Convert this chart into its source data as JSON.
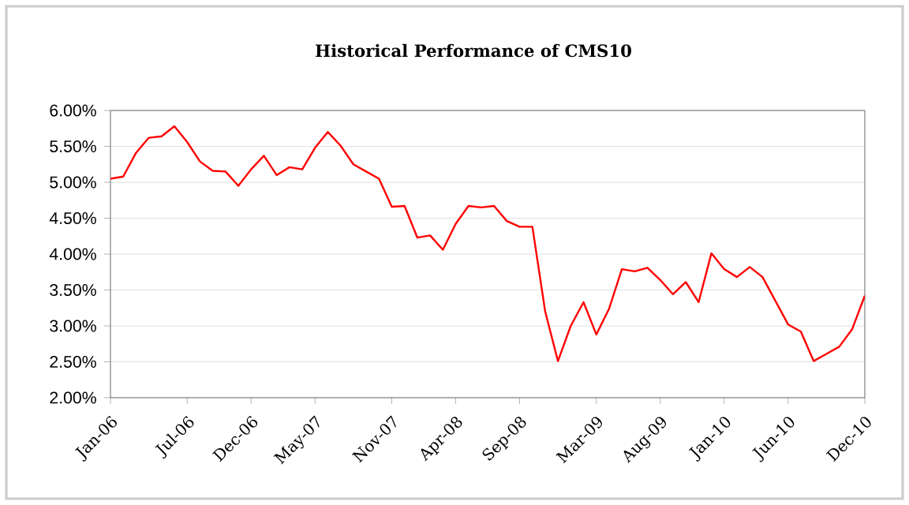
{
  "chart_data": {
    "type": "line",
    "title": "Historical Performance of CMS10",
    "x": [
      "2006-01",
      "2006-02",
      "2006-03",
      "2006-04",
      "2006-05",
      "2006-06",
      "2006-07",
      "2006-08",
      "2006-09",
      "2006-10",
      "2006-11",
      "2006-12",
      "2007-01",
      "2007-02",
      "2007-03",
      "2007-04",
      "2007-05",
      "2007-06",
      "2007-07",
      "2007-08",
      "2007-09",
      "2007-10",
      "2007-11",
      "2007-12",
      "2008-01",
      "2008-02",
      "2008-03",
      "2008-04",
      "2008-05",
      "2008-06",
      "2008-07",
      "2008-08",
      "2008-09",
      "2008-10",
      "2008-11",
      "2008-12",
      "2009-01",
      "2009-02",
      "2009-03",
      "2009-04",
      "2009-05",
      "2009-06",
      "2009-07",
      "2009-08",
      "2009-09",
      "2009-10",
      "2009-11",
      "2009-12",
      "2010-01",
      "2010-02",
      "2010-03",
      "2010-04",
      "2010-05",
      "2010-06",
      "2010-07",
      "2010-08",
      "2010-09",
      "2010-10",
      "2010-11",
      "2010-12"
    ],
    "series": [
      {
        "color": "#ff0000",
        "values": [
          5.05,
          5.08,
          5.41,
          5.62,
          5.64,
          5.78,
          5.56,
          5.29,
          5.16,
          5.15,
          4.95,
          5.18,
          5.37,
          5.1,
          5.21,
          5.18,
          5.48,
          5.7,
          5.51,
          5.25,
          5.15,
          5.05,
          4.66,
          4.67,
          4.23,
          4.26,
          4.06,
          4.42,
          4.67,
          4.65,
          4.67,
          4.46,
          4.38,
          4.38,
          3.2,
          2.51,
          3.0,
          3.33,
          2.88,
          3.24,
          3.79,
          3.76,
          3.81,
          3.64,
          3.44,
          3.61,
          3.33,
          4.01,
          3.79,
          3.68,
          3.82,
          3.68,
          3.35,
          3.02,
          2.92,
          2.51,
          2.61,
          2.71,
          2.95,
          3.42
        ]
      }
    ],
    "xlim": [
      "2006-01",
      "2010-12"
    ],
    "xticks": [
      {
        "value": "2006-01",
        "label": "Jan-06"
      },
      {
        "value": "2006-07",
        "label": "Jul-06"
      },
      {
        "value": "2006-12",
        "label": "Dec-06"
      },
      {
        "value": "2007-05",
        "label": "May-07"
      },
      {
        "value": "2007-11",
        "label": "Nov-07"
      },
      {
        "value": "2008-04",
        "label": "Apr-08"
      },
      {
        "value": "2008-09",
        "label": "Sep-08"
      },
      {
        "value": "2009-03",
        "label": "Mar-09"
      },
      {
        "value": "2009-08",
        "label": "Aug-09"
      },
      {
        "value": "2010-01",
        "label": "Jan-10"
      },
      {
        "value": "2010-06",
        "label": "Jun-10"
      },
      {
        "value": "2010-12",
        "label": "Dec-10"
      }
    ],
    "ylim": [
      2,
      6
    ],
    "yticks": [
      {
        "value": 2,
        "label": "2.00%"
      },
      {
        "value": 2.5,
        "label": "2.50%"
      },
      {
        "value": 3,
        "label": "3.00%"
      },
      {
        "value": 3.5,
        "label": "3.50%"
      },
      {
        "value": 4,
        "label": "4.00%"
      },
      {
        "value": 4.5,
        "label": "4.50%"
      },
      {
        "value": 5,
        "label": "5.00%"
      },
      {
        "value": 5.5,
        "label": "5.50%"
      },
      {
        "value": 6,
        "label": "6.00%"
      }
    ],
    "grid": "y",
    "marker": "none",
    "line_style": "solid"
  }
}
